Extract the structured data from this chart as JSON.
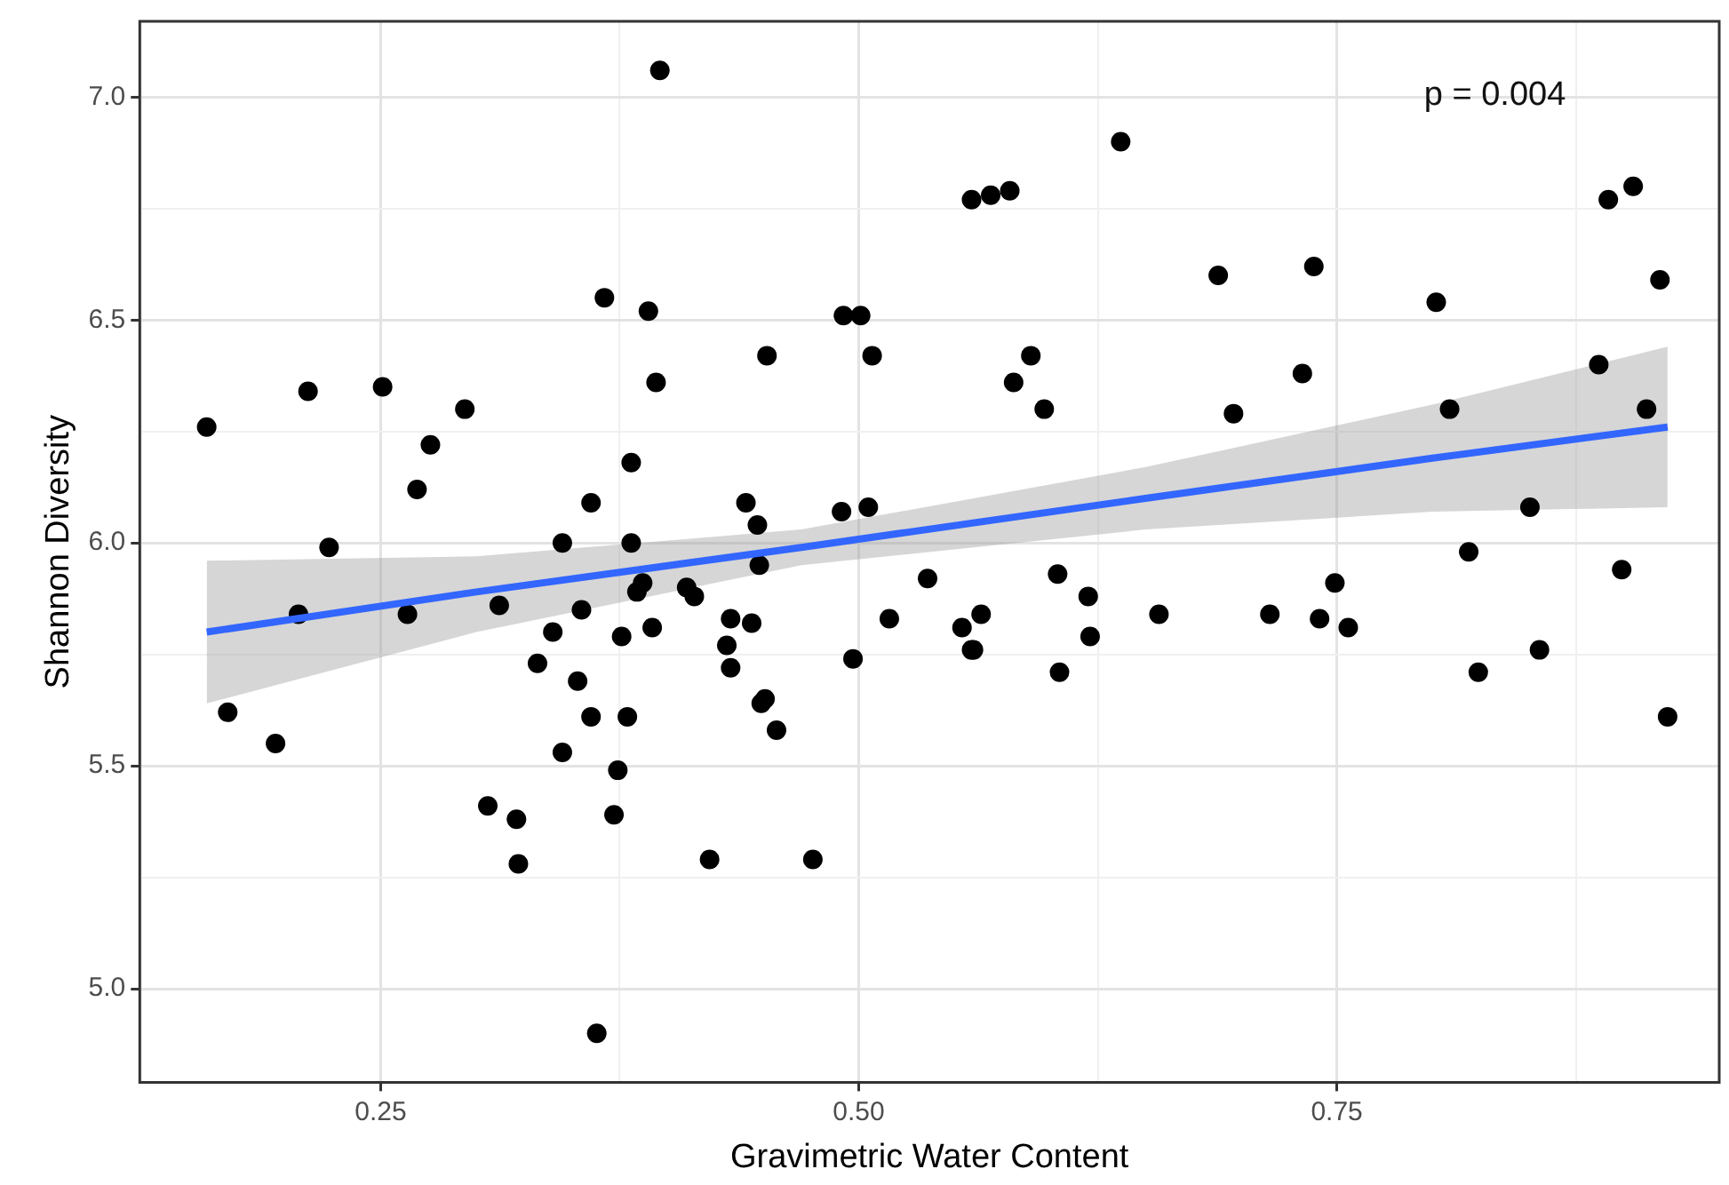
{
  "chart_data": {
    "type": "scatter",
    "xlabel": "Gravimetric Water Content",
    "ylabel": "Shannon Diversity",
    "annotations": [
      "p = 0.004"
    ],
    "xlim": [
      0.124,
      0.95
    ],
    "ylim": [
      4.79,
      7.17
    ],
    "xticks": [
      {
        "value": 0.125,
        "label": null
      },
      {
        "value": 0.25,
        "label": "0.25"
      },
      {
        "value": 0.375,
        "label": null
      },
      {
        "value": 0.5,
        "label": "0.50"
      },
      {
        "value": 0.625,
        "label": null
      },
      {
        "value": 0.75,
        "label": "0.75"
      },
      {
        "value": 0.875,
        "label": null
      }
    ],
    "yticks": [
      {
        "value": 5.0,
        "label": "5.0"
      },
      {
        "value": 5.25,
        "label": null
      },
      {
        "value": 5.5,
        "label": "5.5"
      },
      {
        "value": 5.75,
        "label": null
      },
      {
        "value": 6.0,
        "label": "6.0"
      },
      {
        "value": 6.25,
        "label": null
      },
      {
        "value": 6.5,
        "label": "6.5"
      },
      {
        "value": 6.75,
        "label": null
      },
      {
        "value": 7.0,
        "label": "7.0"
      }
    ],
    "grid": true,
    "marker": "circle",
    "series": [
      {
        "type": "scatter",
        "color": "#000000",
        "x": [
          0.396,
          0.367,
          0.39,
          0.394,
          0.212,
          0.251,
          0.294,
          0.159,
          0.276,
          0.269,
          0.381,
          0.36,
          0.223,
          0.345,
          0.381,
          0.387,
          0.384,
          0.207,
          0.264,
          0.312,
          0.355,
          0.34,
          0.376,
          0.392,
          0.332,
          0.353,
          0.17,
          0.195,
          0.36,
          0.379,
          0.345,
          0.374,
          0.306,
          0.321,
          0.372,
          0.322,
          0.363,
          0.452,
          0.441,
          0.447,
          0.448,
          0.41,
          0.414,
          0.433,
          0.444,
          0.431,
          0.433,
          0.449,
          0.451,
          0.457,
          0.422,
          0.476,
          0.492,
          0.501,
          0.507,
          0.491,
          0.505,
          0.497,
          0.516,
          0.536,
          0.554,
          0.564,
          0.559,
          0.56,
          0.559,
          0.569,
          0.579,
          0.59,
          0.581,
          0.597,
          0.604,
          0.62,
          0.621,
          0.605,
          0.637,
          0.657,
          0.688,
          0.696,
          0.715,
          0.738,
          0.732,
          0.741,
          0.749,
          0.756,
          0.802,
          0.809,
          0.819,
          0.851,
          0.824,
          0.856,
          0.892,
          0.905,
          0.919,
          0.887,
          0.912,
          0.899,
          0.923
        ],
        "values": [
          7.06,
          6.55,
          6.52,
          6.36,
          6.34,
          6.35,
          6.3,
          6.26,
          6.22,
          6.12,
          6.18,
          6.09,
          5.99,
          6.0,
          6.0,
          5.91,
          5.89,
          5.84,
          5.84,
          5.86,
          5.85,
          5.8,
          5.79,
          5.81,
          5.73,
          5.69,
          5.62,
          5.55,
          5.61,
          5.61,
          5.53,
          5.49,
          5.41,
          5.38,
          5.39,
          5.28,
          4.9,
          6.42,
          6.09,
          6.04,
          5.95,
          5.9,
          5.88,
          5.83,
          5.82,
          5.77,
          5.72,
          5.64,
          5.65,
          5.58,
          5.29,
          5.29,
          6.51,
          6.51,
          6.42,
          6.07,
          6.08,
          5.74,
          5.83,
          5.92,
          5.81,
          5.84,
          5.76,
          5.76,
          6.77,
          6.78,
          6.79,
          6.42,
          6.36,
          6.3,
          5.93,
          5.88,
          5.79,
          5.71,
          6.9,
          5.84,
          6.6,
          6.29,
          5.84,
          6.62,
          6.38,
          5.83,
          5.91,
          5.81,
          6.54,
          6.3,
          5.98,
          6.08,
          5.71,
          5.76,
          6.77,
          6.8,
          6.59,
          6.4,
          6.3,
          5.94,
          5.61
        ]
      },
      {
        "type": "line",
        "color": "#3366ff",
        "marker": "none",
        "x": [
          0.159,
          0.3,
          0.47,
          0.65,
          0.8,
          0.923
        ],
        "values": [
          5.8,
          5.89,
          5.99,
          6.1,
          6.19,
          6.26
        ],
        "lower": [
          5.64,
          5.8,
          5.95,
          6.03,
          6.07,
          6.08
        ],
        "upper": [
          5.96,
          5.97,
          6.03,
          6.17,
          6.31,
          6.44
        ]
      }
    ]
  }
}
